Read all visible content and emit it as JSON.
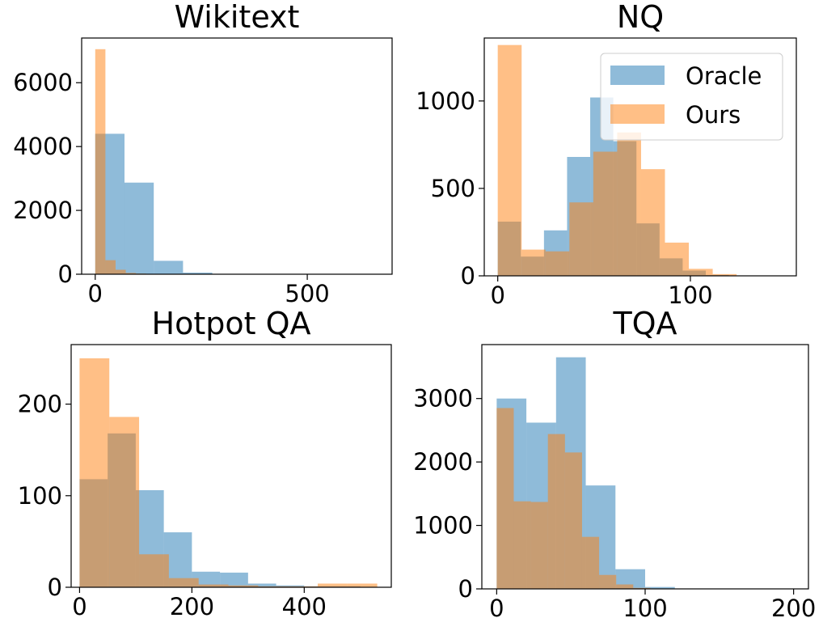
{
  "chart_data": [
    {
      "type": "histogram",
      "title": "Wikitext",
      "xlim": [
        -32,
        700
      ],
      "ylim": [
        0,
        7400
      ],
      "xticks": [
        0,
        500
      ],
      "yticks": [
        0,
        2000,
        4000,
        6000
      ],
      "bin_width": 69,
      "series": [
        {
          "name": "Oracle",
          "color": "#1f77b4",
          "bin_start": 0,
          "bin_width": 69,
          "counts": [
            4400,
            2870,
            420,
            50,
            10,
            5,
            3,
            2,
            1,
            1
          ]
        },
        {
          "name": "Ours",
          "color": "#ff7f0e",
          "bin_start": 0,
          "bin_width": 24,
          "counts": [
            7050,
            440,
            140,
            40,
            20,
            10,
            5,
            3,
            1,
            1
          ]
        }
      ]
    },
    {
      "type": "histogram",
      "title": "NQ",
      "xlim": [
        -7,
        155
      ],
      "ylim": [
        0,
        1360
      ],
      "xticks": [
        0,
        100
      ],
      "yticks": [
        0,
        500,
        1000
      ],
      "legend": {
        "position": "top-right",
        "entries": [
          "Oracle",
          "Ours"
        ]
      },
      "series": [
        {
          "name": "Oracle",
          "color": "#1f77b4",
          "bin_start": 0,
          "bin_width": 12,
          "counts": [
            310,
            110,
            260,
            680,
            1020,
            770,
            300,
            100,
            30,
            5,
            2,
            1
          ]
        },
        {
          "name": "Ours",
          "color": "#ff7f0e",
          "bin_start": 0,
          "bin_width": 12.4,
          "counts": [
            1320,
            150,
            140,
            420,
            710,
            820,
            610,
            190,
            40,
            10
          ]
        }
      ]
    },
    {
      "type": "histogram",
      "title": "Hotpot QA",
      "xlim": [
        -15,
        555
      ],
      "ylim": [
        0,
        265
      ],
      "xticks": [
        0,
        200,
        400
      ],
      "yticks": [
        0,
        100,
        200
      ],
      "series": [
        {
          "name": "Oracle",
          "color": "#1f77b4",
          "bin_start": 0,
          "bin_width": 50,
          "counts": [
            118,
            168,
            106,
            60,
            17,
            16,
            4,
            2,
            1,
            1
          ]
        },
        {
          "name": "Ours",
          "color": "#ff7f0e",
          "bin_start": 0,
          "bin_width": 53,
          "counts": [
            250,
            186,
            36,
            10,
            3,
            2,
            1,
            1,
            4,
            4
          ]
        }
      ]
    },
    {
      "type": "histogram",
      "title": "TQA",
      "xlim": [
        -10,
        210
      ],
      "ylim": [
        0,
        3850
      ],
      "xticks": [
        0,
        100,
        200
      ],
      "yticks": [
        0,
        1000,
        2000,
        3000
      ],
      "series": [
        {
          "name": "Oracle",
          "color": "#1f77b4",
          "bin_start": 0,
          "bin_width": 20,
          "counts": [
            3000,
            2620,
            3650,
            1630,
            310,
            30,
            5,
            3,
            2,
            1
          ]
        },
        {
          "name": "Ours",
          "color": "#ff7f0e",
          "bin_start": 0,
          "bin_width": 11.5,
          "counts": [
            2850,
            1380,
            1370,
            2440,
            2150,
            820,
            220,
            70,
            15,
            5
          ]
        }
      ]
    }
  ]
}
